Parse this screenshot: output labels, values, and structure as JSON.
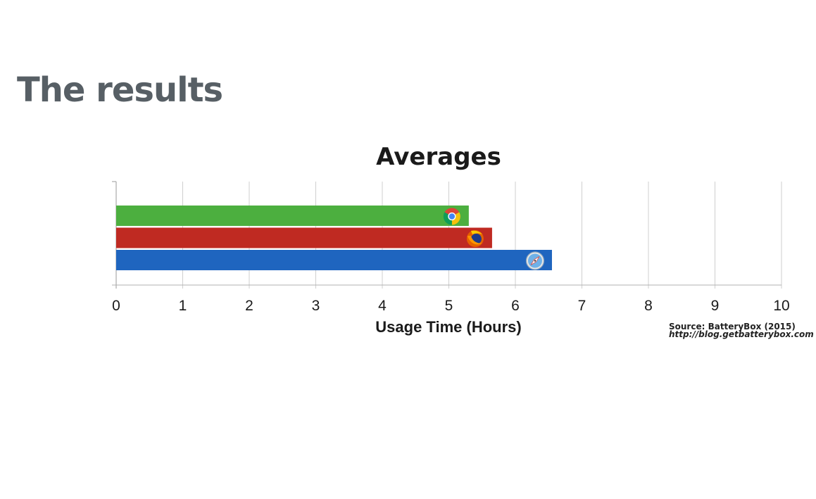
{
  "slide": {
    "title": "The results"
  },
  "chart_data": {
    "type": "bar",
    "orientation": "horizontal",
    "title": "Averages",
    "xlabel": "Usage Time (Hours)",
    "ylabel": "",
    "xlim": [
      0,
      10
    ],
    "x_ticks": [
      "0",
      "1",
      "2",
      "3",
      "4",
      "5",
      "6",
      "7",
      "8",
      "9",
      "10"
    ],
    "grid": true,
    "series": [
      {
        "icon": "chrome-icon",
        "color": "#4caf3f",
        "value": 5.3
      },
      {
        "icon": "firefox-icon",
        "color": "#bf2a22",
        "value": 5.65
      },
      {
        "icon": "safari-icon",
        "color": "#1f65bf",
        "value": 6.55
      }
    ]
  },
  "source": {
    "line1": "Source: BatteryBox (2015)",
    "line2": "http://blog.getbatterybox.com"
  }
}
